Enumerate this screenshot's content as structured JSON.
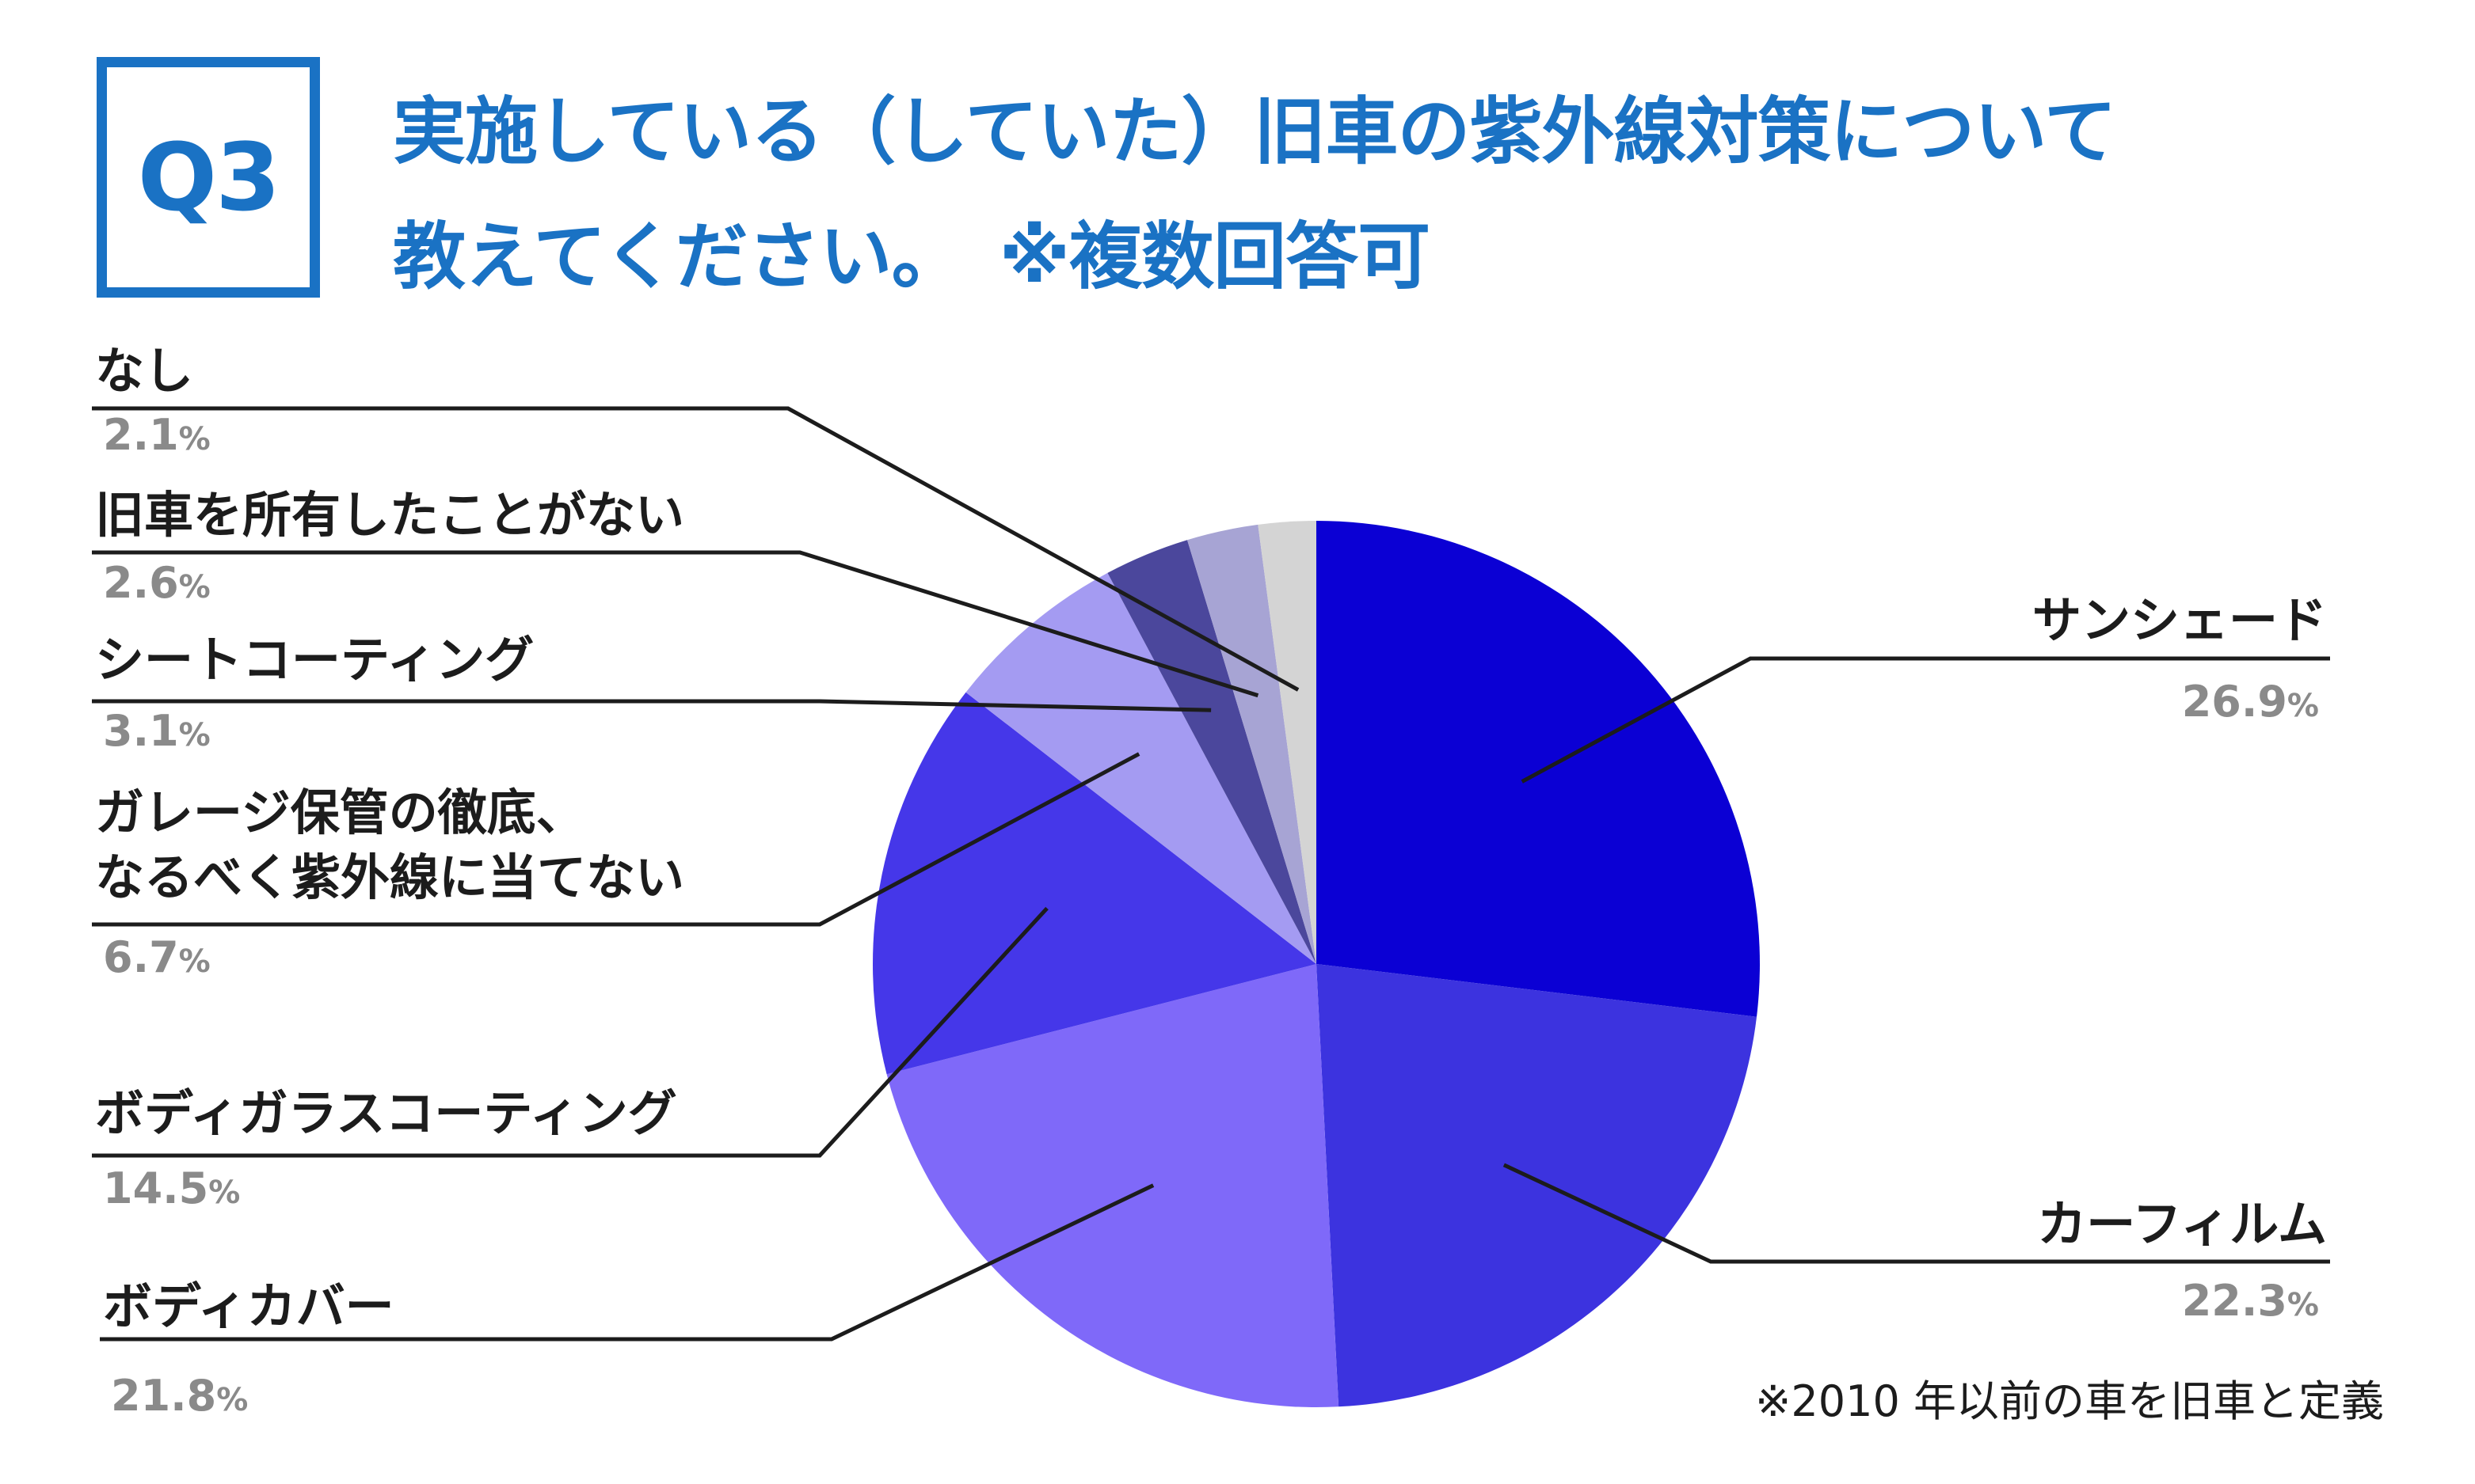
{
  "badge": "Q3",
  "title_line1": "実施している（していた）旧車の紫外線対策について",
  "title_line2": "教えてください。　※複数回答可",
  "footnote": "※2010 年以前の車を旧車と定義",
  "colors": {
    "title": "#1a72c4",
    "label": "#1c1c1c",
    "percent": "#8a8a8a"
  },
  "chart_data": {
    "type": "pie",
    "unit": "%",
    "start": "12 o'clock",
    "direction": "clockwise",
    "slices": [
      {
        "label": "サンシェード",
        "value": 26.9,
        "color": "#0b00d4"
      },
      {
        "label": "カーフィルム",
        "value": 22.3,
        "color": "#3c33df"
      },
      {
        "label": "ボディカバー",
        "value": 21.8,
        "color": "#7f69f9"
      },
      {
        "label": "ボディガラスコーティング",
        "value": 14.5,
        "color": "#4537e9"
      },
      {
        "label": "ガレージ保管の徹底、\nなるべく紫外線に当てない",
        "value": 6.7,
        "color": "#a49bf2"
      },
      {
        "label": "シートコーティング",
        "value": 3.1,
        "color": "#4b479c"
      },
      {
        "label": "旧車を所有したことがない",
        "value": 2.6,
        "color": "#a7a4d4"
      },
      {
        "label": "なし",
        "value": 2.1,
        "color": "#d4d4d4"
      }
    ]
  }
}
